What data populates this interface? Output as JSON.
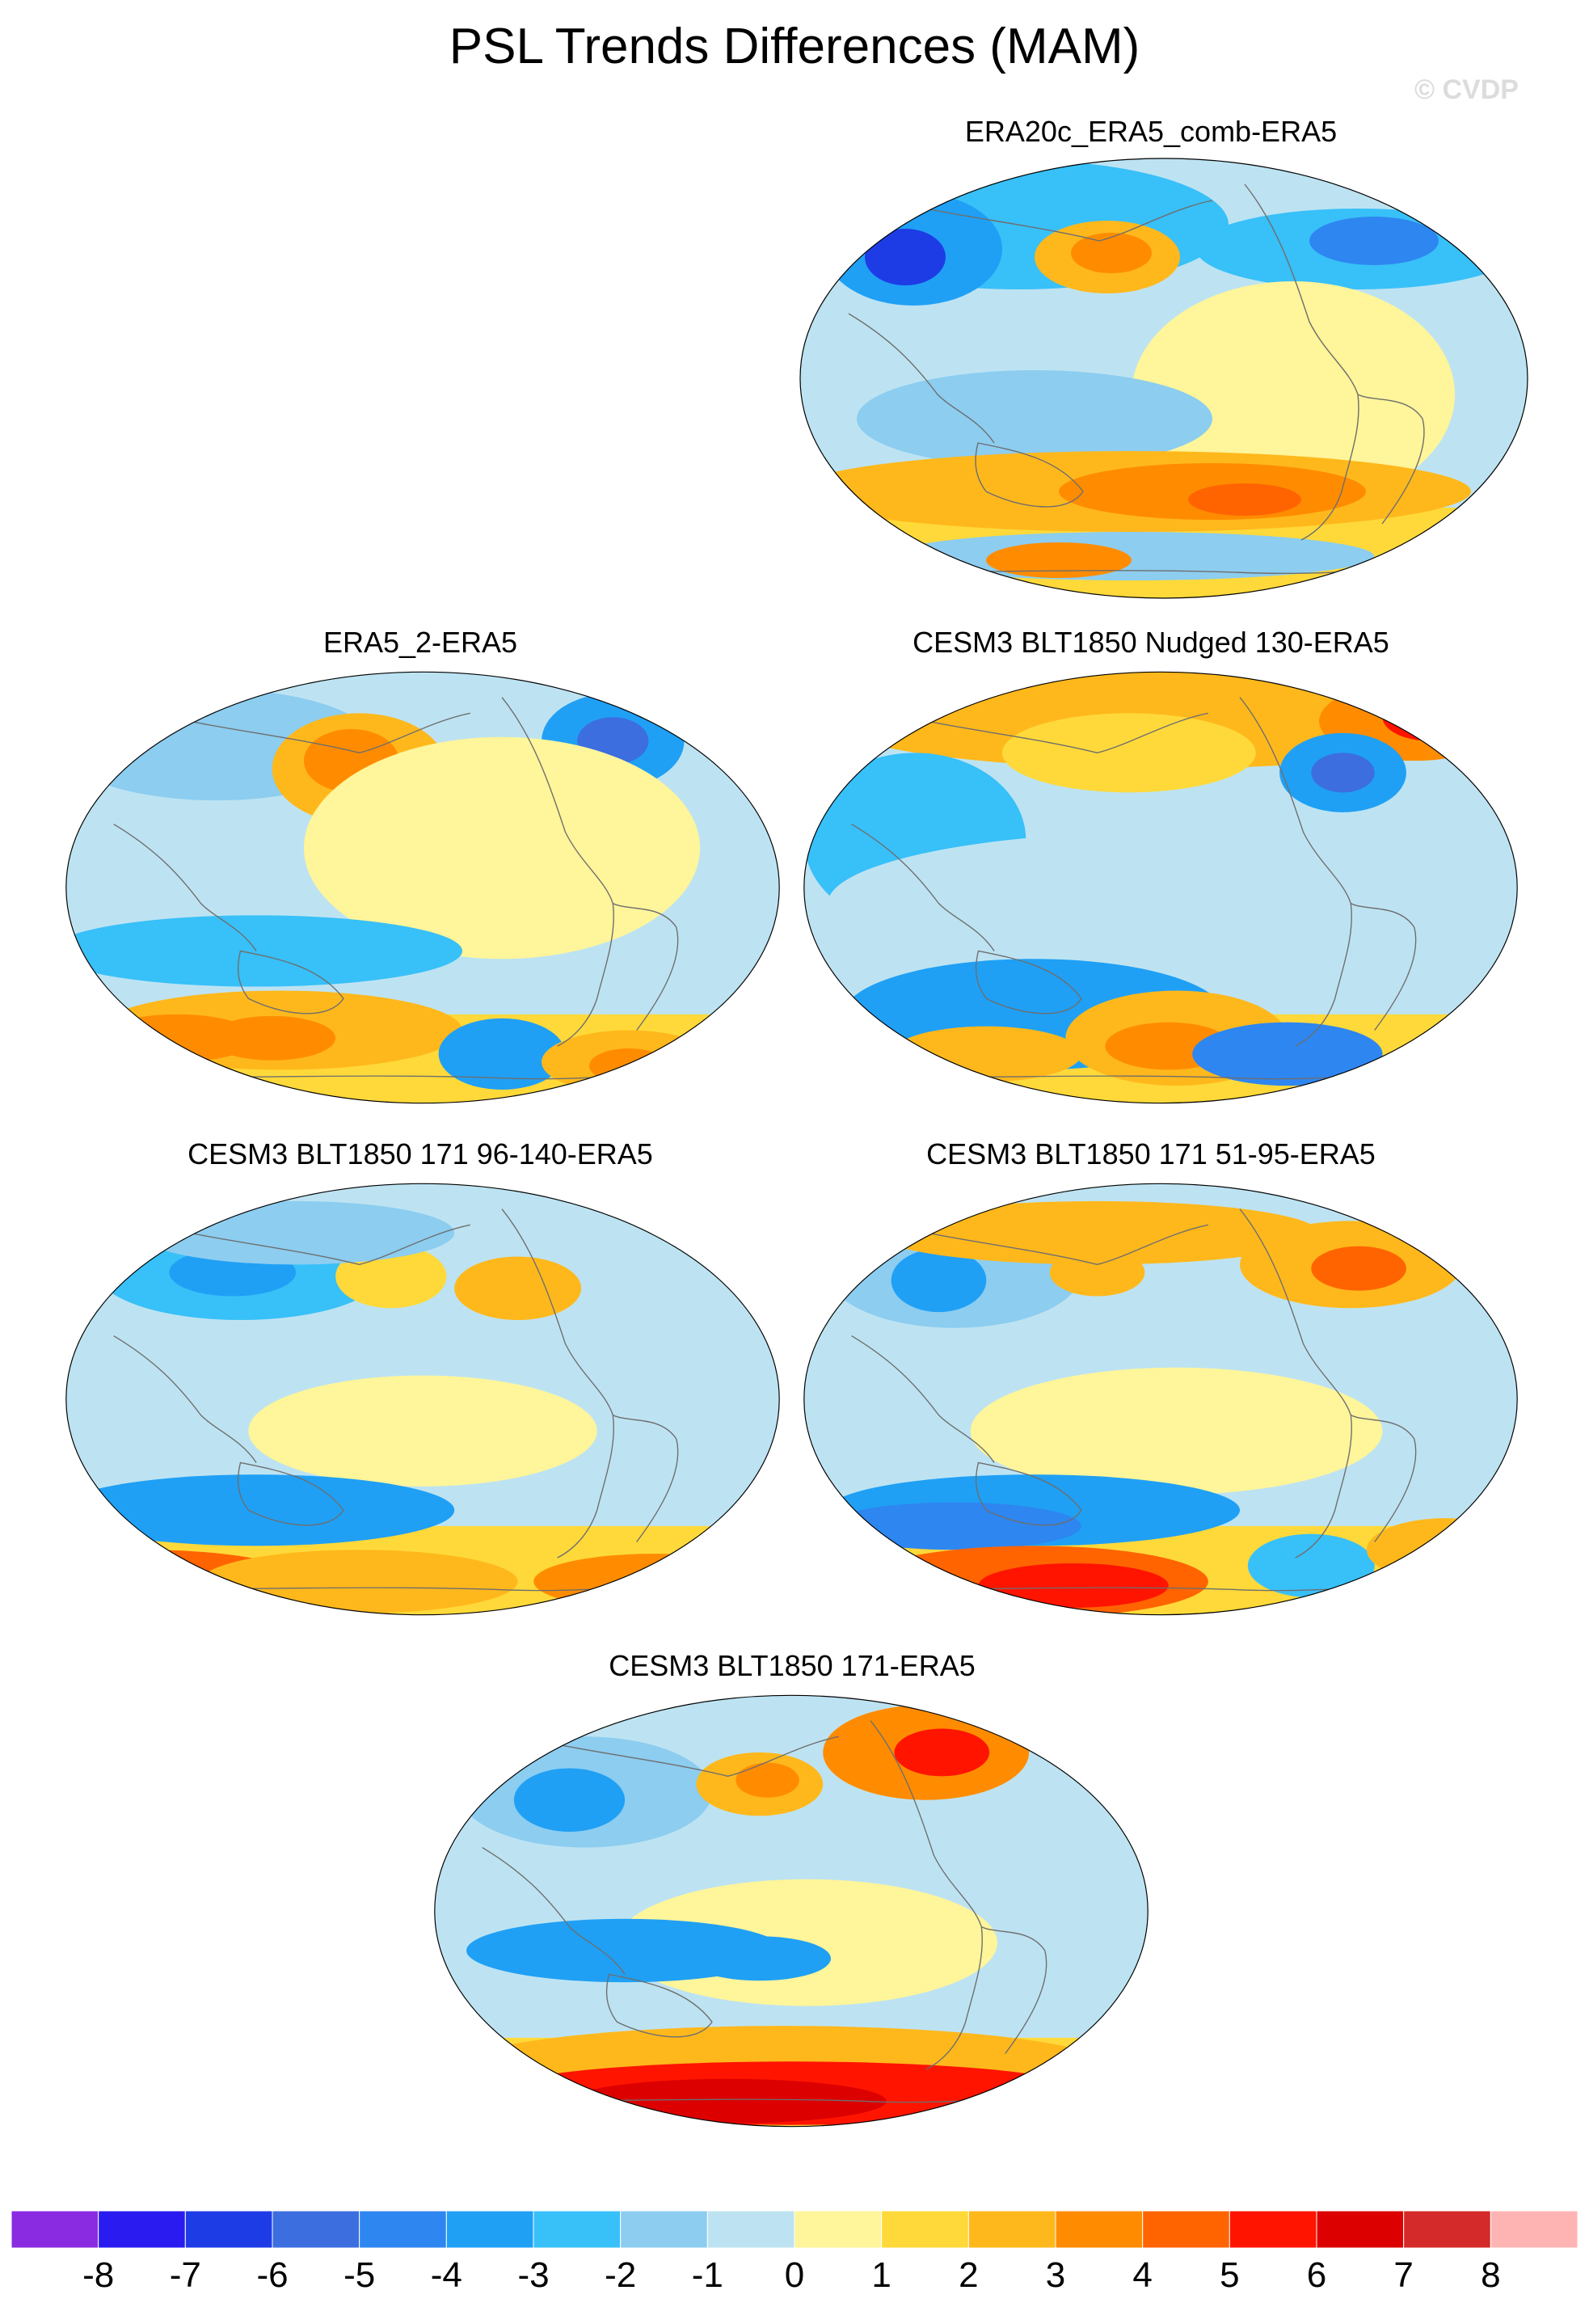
{
  "figure": {
    "title": "PSL Trends Differences (MAM)",
    "watermark": "© CVDP"
  },
  "panels": [
    {
      "id": "p1",
      "title": "ERA20c_ERA5_comb-ERA5",
      "variant": 0
    },
    {
      "id": "p2",
      "title": "ERA5_2-ERA5",
      "variant": 1
    },
    {
      "id": "p3",
      "title": "CESM3 BLT1850 Nudged 130-ERA5",
      "variant": 2
    },
    {
      "id": "p4",
      "title": "CESM3 BLT1850 171 96-140-ERA5",
      "variant": 3
    },
    {
      "id": "p5",
      "title": "CESM3 BLT1850 171 51-95-ERA5",
      "variant": 4
    },
    {
      "id": "p6",
      "title": "CESM3 BLT1850 171-ERA5",
      "variant": 5
    }
  ],
  "colorbar": {
    "colors": [
      "#8a2be2",
      "#2a1cf0",
      "#1e3ce6",
      "#3c6ee0",
      "#2e86f0",
      "#1fa0f5",
      "#38c0f8",
      "#8ccdf0",
      "#bde3f2",
      "#fff59a",
      "#ffd93a",
      "#ffb81c",
      "#ff8c00",
      "#ff6400",
      "#ff1400",
      "#dc0000",
      "#d42a2a",
      "#ffb4b4"
    ],
    "labels": [
      "-8",
      "-7",
      "-6",
      "-5",
      "-4",
      "-3",
      "-2",
      "-1",
      "0",
      "1",
      "2",
      "3",
      "4",
      "5",
      "6",
      "7",
      "8"
    ]
  }
}
